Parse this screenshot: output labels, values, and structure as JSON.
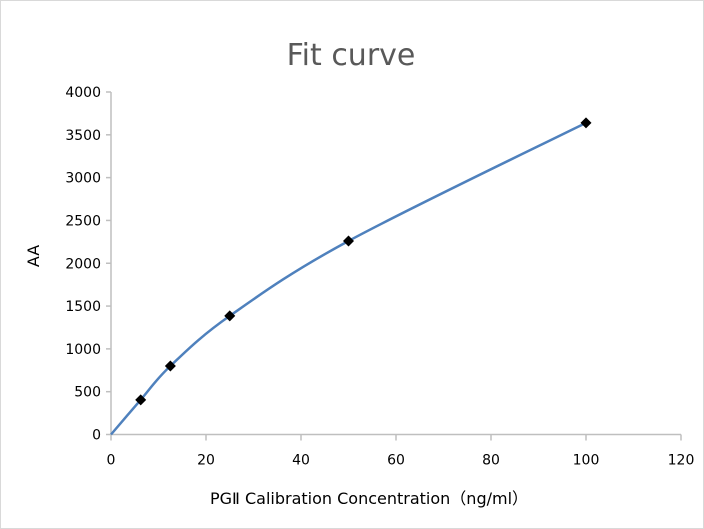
{
  "chart_data": {
    "type": "scatter",
    "title": "Fit curve",
    "xlabel": "PGⅡ Calibration Concentration（ng/ml）",
    "ylabel": "AA",
    "xlim": [
      0,
      120
    ],
    "ylim": [
      0,
      4000
    ],
    "xticks": [
      0,
      20,
      40,
      60,
      80,
      100,
      120
    ],
    "yticks": [
      0,
      500,
      1000,
      1500,
      2000,
      2500,
      3000,
      3500,
      4000
    ],
    "grid": false,
    "legend": "none",
    "series": [
      {
        "marker": "diamond",
        "x": [
          6.25,
          12.5,
          25,
          50,
          100
        ],
        "y": [
          405,
          800,
          1385,
          2260,
          3640
        ]
      }
    ],
    "fit_curve": {
      "x": [
        0,
        6.25,
        12.5,
        25,
        50,
        100
      ],
      "y": [
        0,
        405,
        800,
        1385,
        2260,
        3640
      ]
    },
    "colors": {
      "curve": "#4f81bd",
      "marker": "#000000",
      "axis": "#bfbfbf",
      "title": "#595959"
    }
  }
}
